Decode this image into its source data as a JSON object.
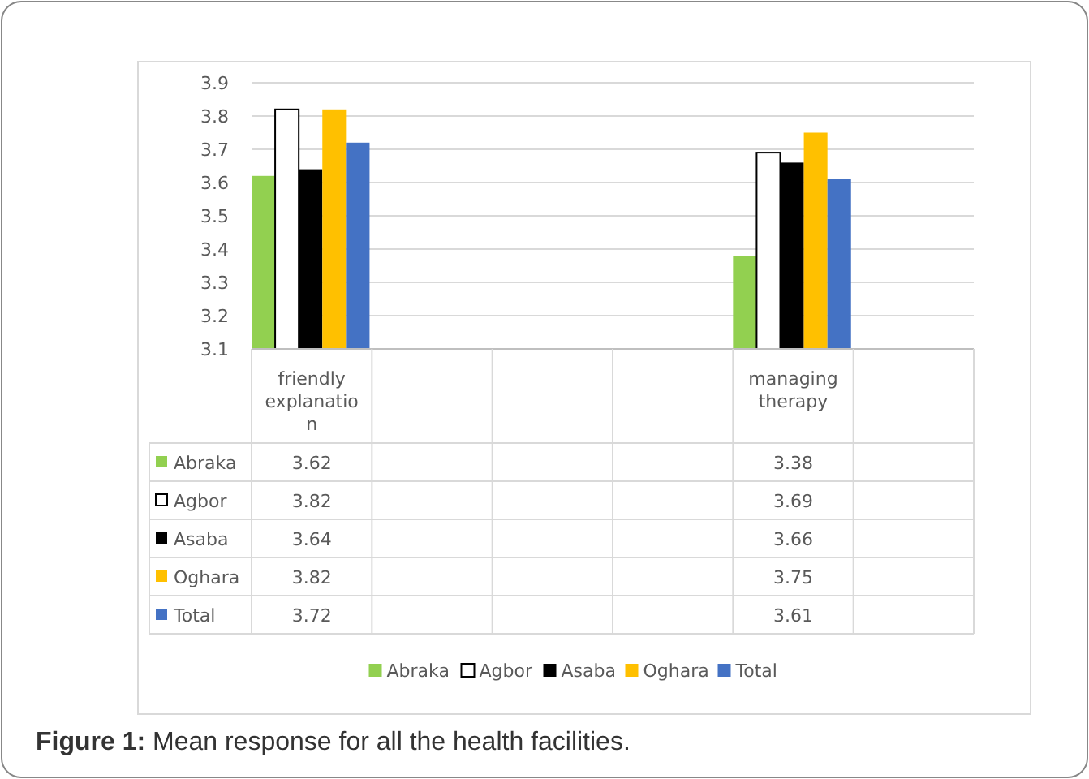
{
  "chart_data": {
    "type": "bar",
    "categories": [
      "friendly explanation",
      null,
      null,
      null,
      "managing therapy",
      null
    ],
    "series": [
      {
        "name": "Abraka",
        "color": "#92d050",
        "values": [
          3.62,
          null,
          null,
          null,
          3.38,
          null
        ]
      },
      {
        "name": "Agbor",
        "color": "#ffffff",
        "values": [
          3.82,
          null,
          null,
          null,
          3.69,
          null
        ]
      },
      {
        "name": "Asaba",
        "color": "#000000",
        "values": [
          3.64,
          null,
          null,
          null,
          3.66,
          null
        ]
      },
      {
        "name": "Oghara",
        "color": "#ffc000",
        "values": [
          3.82,
          null,
          null,
          null,
          3.75,
          null
        ]
      },
      {
        "name": "Total",
        "color": "#4472c4",
        "values": [
          3.72,
          null,
          null,
          null,
          3.61,
          null
        ]
      }
    ],
    "ylim": [
      3.1,
      3.9
    ],
    "yticks": [
      3.1,
      3.2,
      3.3,
      3.4,
      3.5,
      3.6,
      3.7,
      3.8,
      3.9
    ],
    "grid": "y",
    "legend": "bottom",
    "data_labels": true,
    "annotations": [
      "Figure 1: Mean response for all the health facilities."
    ]
  }
}
